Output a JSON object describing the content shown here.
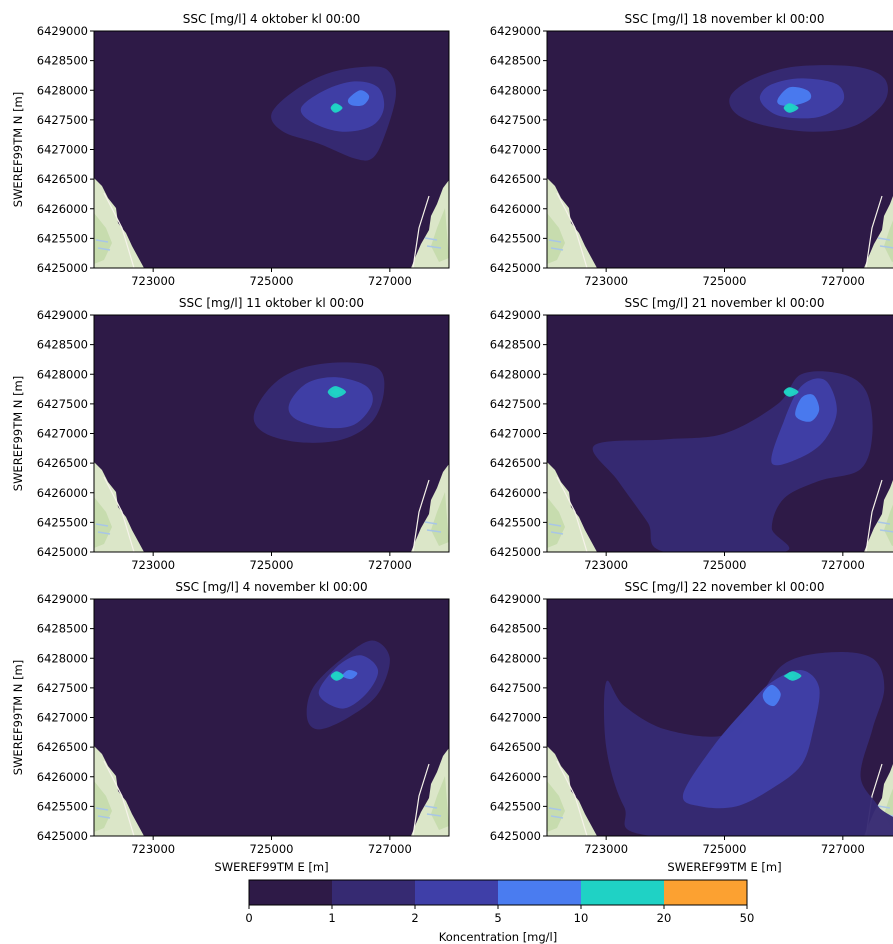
{
  "chart_data": {
    "type": "contour",
    "figure": {
      "colorbar": {
        "label": "Koncentration [mg/l]",
        "levels": [
          0,
          1,
          2,
          5,
          10,
          20,
          50
        ],
        "level_labels": [
          "0",
          "1",
          "2",
          "5",
          "10",
          "20",
          "50"
        ],
        "colors": [
          "#2e1a47",
          "#362a72",
          "#3f3fa8",
          "#4a7cf0",
          "#1fd2c5",
          "#fca131"
        ]
      },
      "xlabel": "SWEREF99TM E [m]",
      "ylabel": "SWEREF99TM N [m]",
      "xlim": [
        722000,
        728000
      ],
      "ylim": [
        6425000,
        6429000
      ],
      "xticks": [
        723000,
        725000,
        727000
      ],
      "xtick_labels": [
        "723000",
        "725000",
        "727000"
      ],
      "yticks": [
        6425000,
        6425500,
        6426000,
        6426500,
        6427000,
        6427500,
        6428000,
        6428500,
        6429000
      ],
      "ytick_labels": [
        "6425000",
        "6425500",
        "6426000",
        "6426500",
        "6427000",
        "6427500",
        "6428000",
        "6428500",
        "6429000"
      ],
      "source_point": [
        726100,
        6427700
      ],
      "basemap": {
        "land": "#dbe6c8",
        "forest": "#c7dcae",
        "road": "#f6f3ea"
      }
    },
    "panels": [
      {
        "title": "SSC [mg/l] 4 oktober kl 00:00",
        "contours": [
          {
            "band": 1,
            "points": [
              [
                725000,
                6427600
              ],
              [
                725400,
                6428000
              ],
              [
                726000,
                6428300
              ],
              [
                726700,
                6428400
              ],
              [
                727000,
                6428300
              ],
              [
                727100,
                6427900
              ],
              [
                726900,
                6427200
              ],
              [
                726700,
                6426850
              ],
              [
                726400,
                6426850
              ],
              [
                725800,
                6427100
              ],
              [
                725200,
                6427300
              ]
            ]
          },
          {
            "band": 2,
            "points": [
              [
                725500,
                6427700
              ],
              [
                725900,
                6428000
              ],
              [
                726400,
                6428150
              ],
              [
                726800,
                6428050
              ],
              [
                726900,
                6427700
              ],
              [
                726700,
                6427400
              ],
              [
                726200,
                6427300
              ],
              [
                725700,
                6427450
              ]
            ]
          },
          {
            "band": 3,
            "points": [
              [
                726300,
                6427850
              ],
              [
                726500,
                6428000
              ],
              [
                726650,
                6427900
              ],
              [
                726550,
                6427750
              ],
              [
                726350,
                6427750
              ]
            ]
          },
          {
            "band": 4,
            "points": [
              [
                726000,
                6427700
              ],
              [
                726080,
                6427780
              ],
              [
                726200,
                6427700
              ],
              [
                726080,
                6427620
              ]
            ]
          }
        ]
      },
      {
        "title": "SSC [mg/l] 18 november kl 00:00",
        "contours": [
          {
            "band": 1,
            "points": [
              [
                725100,
                6427900
              ],
              [
                725500,
                6428200
              ],
              [
                726200,
                6428400
              ],
              [
                727200,
                6428400
              ],
              [
                727700,
                6428200
              ],
              [
                727700,
                6427800
              ],
              [
                727200,
                6427400
              ],
              [
                726500,
                6427300
              ],
              [
                725700,
                6427400
              ],
              [
                725200,
                6427600
              ]
            ]
          },
          {
            "band": 2,
            "points": [
              [
                725600,
                6427900
              ],
              [
                725800,
                6428100
              ],
              [
                726300,
                6428200
              ],
              [
                726900,
                6428100
              ],
              [
                727000,
                6427800
              ],
              [
                726600,
                6427550
              ],
              [
                726000,
                6427550
              ],
              [
                725700,
                6427700
              ]
            ]
          },
          {
            "band": 3,
            "points": [
              [
                725900,
                6427850
              ],
              [
                726100,
                6428050
              ],
              [
                726400,
                6428000
              ],
              [
                726450,
                6427850
              ],
              [
                726200,
                6427750
              ],
              [
                725950,
                6427750
              ]
            ]
          },
          {
            "band": 4,
            "points": [
              [
                726000,
                6427700
              ],
              [
                726100,
                6427780
              ],
              [
                726250,
                6427700
              ],
              [
                726100,
                6427620
              ]
            ]
          }
        ]
      },
      {
        "title": "SSC [mg/l] 11 oktober kl 00:00",
        "contours": [
          {
            "band": 1,
            "points": [
              [
                724700,
                6427300
              ],
              [
                725000,
                6427800
              ],
              [
                725500,
                6428100
              ],
              [
                726200,
                6428200
              ],
              [
                726800,
                6428100
              ],
              [
                726900,
                6427700
              ],
              [
                726700,
                6427200
              ],
              [
                726200,
                6426900
              ],
              [
                725500,
                6426850
              ],
              [
                724900,
                6427000
              ]
            ]
          },
          {
            "band": 2,
            "points": [
              [
                725300,
                6427500
              ],
              [
                725600,
                6427850
              ],
              [
                726100,
                6427950
              ],
              [
                726600,
                6427800
              ],
              [
                726700,
                6427500
              ],
              [
                726400,
                6427150
              ],
              [
                725900,
                6427100
              ],
              [
                725400,
                6427250
              ]
            ]
          },
          {
            "band": 4,
            "points": [
              [
                725950,
                6427700
              ],
              [
                726080,
                6427800
              ],
              [
                726260,
                6427700
              ],
              [
                726080,
                6427600
              ]
            ]
          }
        ]
      },
      {
        "title": "SSC [mg/l] 21 november kl 00:00",
        "contours": [
          {
            "band": 1,
            "points": [
              [
                722800,
                6426800
              ],
              [
                723200,
                6426200
              ],
              [
                723700,
                6425500
              ],
              [
                724000,
                6425000
              ],
              [
                726000,
                6425000
              ],
              [
                725800,
                6425400
              ],
              [
                726000,
                6425900
              ],
              [
                726600,
                6426200
              ],
              [
                727300,
                6426400
              ],
              [
                727500,
                6427000
              ],
              [
                727400,
                6427700
              ],
              [
                727000,
                6428000
              ],
              [
                726300,
                6428000
              ],
              [
                725900,
                6427500
              ],
              [
                725000,
                6427000
              ],
              [
                724000,
                6426900
              ]
            ]
          },
          {
            "band": 2,
            "points": [
              [
                725800,
                6426500
              ],
              [
                726000,
                6427200
              ],
              [
                726300,
                6427800
              ],
              [
                726700,
                6427900
              ],
              [
                726900,
                6427400
              ],
              [
                726700,
                6426900
              ],
              [
                726300,
                6426600
              ]
            ]
          },
          {
            "band": 3,
            "points": [
              [
                726200,
                6427300
              ],
              [
                726300,
                6427600
              ],
              [
                726500,
                6427650
              ],
              [
                726600,
                6427400
              ],
              [
                726450,
                6427200
              ]
            ]
          },
          {
            "band": 4,
            "points": [
              [
                726000,
                6427700
              ],
              [
                726100,
                6427780
              ],
              [
                726250,
                6427700
              ],
              [
                726100,
                6427620
              ]
            ]
          }
        ]
      },
      {
        "title": "SSC [mg/l] 4 november kl 00:00",
        "contours": [
          {
            "band": 1,
            "points": [
              [
                725600,
                6427000
              ],
              [
                725700,
                6427500
              ],
              [
                726200,
                6428000
              ],
              [
                726700,
                6428300
              ],
              [
                727000,
                6428000
              ],
              [
                726800,
                6427400
              ],
              [
                726300,
                6427000
              ],
              [
                725800,
                6426800
              ]
            ]
          },
          {
            "band": 2,
            "points": [
              [
                725800,
                6427400
              ],
              [
                726100,
                6427850
              ],
              [
                726500,
                6428050
              ],
              [
                726800,
                6427800
              ],
              [
                726600,
                6427400
              ],
              [
                726200,
                6427150
              ]
            ]
          },
          {
            "band": 3,
            "points": [
              [
                726200,
                6427700
              ],
              [
                726300,
                6427800
              ],
              [
                726450,
                6427750
              ],
              [
                726350,
                6427650
              ]
            ]
          },
          {
            "band": 4,
            "points": [
              [
                726000,
                6427700
              ],
              [
                726100,
                6427780
              ],
              [
                726220,
                6427700
              ],
              [
                726100,
                6427620
              ]
            ]
          }
        ]
      },
      {
        "title": "SSC [mg/l] 22 november kl 00:00",
        "contours": [
          {
            "band": 1,
            "points": [
              [
                723000,
                6427600
              ],
              [
                723300,
                6427200
              ],
              [
                724000,
                6426800
              ],
              [
                725000,
                6426700
              ],
              [
                725500,
                6427200
              ],
              [
                726000,
                6427900
              ],
              [
                726800,
                6428100
              ],
              [
                727500,
                6428000
              ],
              [
                727700,
                6427500
              ],
              [
                727500,
                6426800
              ],
              [
                727300,
                6426000
              ],
              [
                727600,
                6425500
              ],
              [
                727900,
                6425000
              ],
              [
                723800,
                6425000
              ],
              [
                723300,
                6425500
              ],
              [
                723000,
                6426500
              ]
            ]
          },
          {
            "band": 2,
            "points": [
              [
                724300,
                6425700
              ],
              [
                724800,
                6426500
              ],
              [
                725400,
                6427200
              ],
              [
                725800,
                6427600
              ],
              [
                726300,
                6427800
              ],
              [
                726600,
                6427500
              ],
              [
                726500,
                6426800
              ],
              [
                726300,
                6426200
              ],
              [
                725800,
                6425800
              ],
              [
                725200,
                6425500
              ],
              [
                724600,
                6425500
              ]
            ]
          },
          {
            "band": 3,
            "points": [
              [
                725650,
                6427400
              ],
              [
                725800,
                6427550
              ],
              [
                725950,
                6427400
              ],
              [
                725850,
                6427200
              ],
              [
                725700,
                6427250
              ]
            ]
          },
          {
            "band": 4,
            "points": [
              [
                726050,
                6427700
              ],
              [
                726150,
                6427780
              ],
              [
                726300,
                6427700
              ],
              [
                726150,
                6427620
              ]
            ]
          }
        ]
      }
    ]
  }
}
